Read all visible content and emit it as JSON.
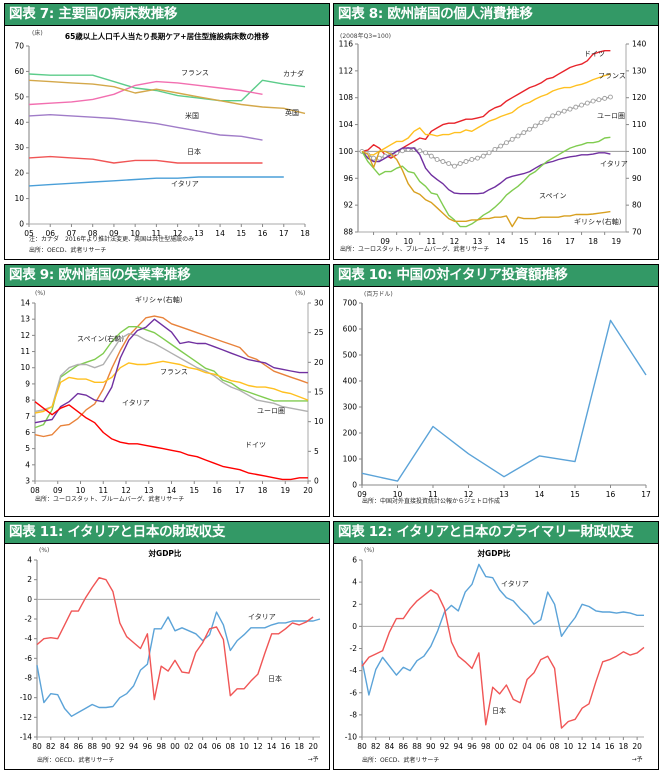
{
  "panels": [
    {
      "title": "図表 7: 主要国の病床数推移"
    },
    {
      "title": "図表 8: 欧州諸国の個人消費推移"
    },
    {
      "title": "図表 9: 欧州諸国の失業率推移"
    },
    {
      "title": "図表 10: 中国の対イタリア投資額推移"
    },
    {
      "title": "図表 11: イタリアと日本の財政収支"
    },
    {
      "title": "図表 12: イタリアと日本のプライマリー財政収支"
    }
  ],
  "chart_data": [
    {
      "type": "line",
      "title": "65歳以上人口千人当たり長期ケア+居住型施設病床数の推移",
      "unit": "(床)",
      "x": [
        "05",
        "06",
        "07",
        "08",
        "09",
        "10",
        "11",
        "12",
        "13",
        "14",
        "15",
        "16",
        "17",
        "18"
      ],
      "ylim": [
        0,
        70
      ],
      "yticks": [
        0,
        10,
        20,
        30,
        40,
        50,
        60,
        70
      ],
      "series": [
        {
          "name": "カナダ",
          "color": "#5ccc8a",
          "values": [
            59,
            58.5,
            58.5,
            58.5,
            56,
            53.5,
            52.5,
            50.5,
            49.5,
            48.5,
            48.5,
            56.5,
            55,
            54
          ]
        },
        {
          "name": "フランス",
          "color": "#f26fb0",
          "values": [
            47,
            47.5,
            48,
            49,
            51,
            54.5,
            56,
            55.5,
            54.5,
            53.5,
            52.5,
            51,
            null,
            null
          ]
        },
        {
          "name": "英国",
          "color": "#d4a84a",
          "values": [
            56.5,
            56,
            55.5,
            55,
            54,
            51.5,
            53,
            51.5,
            50,
            48.5,
            47,
            46,
            45.5,
            43.5
          ]
        },
        {
          "name": "米国",
          "color": "#a07cc8",
          "values": [
            42.5,
            43,
            42.5,
            42,
            41.5,
            40.5,
            39.5,
            38,
            36.5,
            35,
            34.5,
            33,
            null,
            null
          ]
        },
        {
          "name": "日本",
          "color": "#f05555",
          "values": [
            26,
            26.5,
            26,
            25.5,
            24,
            25,
            25,
            24,
            24,
            24,
            24,
            24,
            null,
            null
          ]
        },
        {
          "name": "イタリア",
          "color": "#4a9fd8",
          "values": [
            15,
            15.5,
            16,
            16.5,
            17,
            17.5,
            18,
            18,
            18.5,
            18.5,
            18.5,
            18.5,
            18.5,
            null
          ]
        }
      ],
      "notes": [
        "注：カナダ　2016年より推計法変更、英国は共住型施設のみ",
        "出所：OECD、武者リサーチ"
      ]
    },
    {
      "type": "line",
      "title": "",
      "unit": "(2008年Q3=100)",
      "x": [
        "09",
        "10",
        "11",
        "12",
        "13",
        "14",
        "15",
        "16",
        "17",
        "18",
        "19"
      ],
      "ylim": [
        88,
        116
      ],
      "yticks": [
        88,
        92,
        96,
        100,
        104,
        108,
        112,
        116
      ],
      "y2lim": [
        70,
        140
      ],
      "y2ticks": [
        70,
        80,
        90,
        100,
        110,
        120,
        130,
        140
      ],
      "start_quarter": "2008Q3",
      "series": [
        {
          "name": "ドイツ",
          "color": "#e8232a",
          "axis": "left",
          "values": [
            100,
            100.2,
            101,
            100.5,
            99.5,
            99,
            99.5,
            100.5,
            101,
            101.5,
            102,
            101.8,
            103,
            103.5,
            104,
            104.2,
            104.2,
            104.5,
            104.8,
            104.8,
            105,
            105.2,
            106,
            106.5,
            106.8,
            107.5,
            108,
            108.5,
            109,
            109.5,
            109.8,
            110.2,
            110.8,
            111,
            111.5,
            112,
            112.5,
            112.8,
            113,
            113.5,
            114.5,
            114.8,
            115,
            115
          ]
        },
        {
          "name": "フランス",
          "color": "#ffc020",
          "axis": "left",
          "values": [
            100,
            99.5,
            99.5,
            100,
            100.5,
            101,
            101.5,
            101.5,
            102,
            103,
            103.5,
            102.5,
            102.5,
            102.3,
            102.5,
            102.5,
            102.8,
            102.8,
            103.2,
            103,
            103.5,
            104,
            104.5,
            104.8,
            105.2,
            105.5,
            105.8,
            106.5,
            107,
            107.3,
            107.8,
            108.2,
            108.5,
            109,
            109.3,
            109.5,
            109.5,
            109.8,
            110,
            110.3,
            110.7,
            111,
            111.3,
            111.5
          ]
        },
        {
          "name": "ユーロ圏",
          "color": "#a0a0a0",
          "axis": "left",
          "marker": "circle",
          "values": [
            100,
            99.5,
            99,
            99,
            99.3,
            99.5,
            99.8,
            100.1,
            100.3,
            100.3,
            100.1,
            99.8,
            99.3,
            98.8,
            98.5,
            98.2,
            97.8,
            98.2,
            98.5,
            98.8,
            99,
            99.3,
            99.8,
            100.3,
            100.8,
            101.3,
            101.8,
            102.3,
            102.8,
            103.3,
            103.8,
            104.3,
            104.8,
            105.3,
            105.7,
            106,
            106.3,
            106.6,
            106.9,
            107.2,
            107.5,
            107.7,
            107.9,
            108.1
          ]
        },
        {
          "name": "イタリア",
          "color": "#7030a0",
          "axis": "left",
          "values": [
            100,
            99,
            98.5,
            98.5,
            99,
            99.5,
            100,
            100.5,
            100.5,
            100.5,
            99.5,
            97.5,
            96.5,
            95.8,
            95.2,
            94.3,
            93.8,
            93.7,
            93.7,
            93.7,
            93.7,
            93.8,
            94.3,
            94.7,
            95.3,
            96,
            96.3,
            96.5,
            96.7,
            97,
            97.5,
            98,
            98.3,
            98.5,
            98.8,
            99,
            99.2,
            99.3,
            99.5,
            99.5,
            99.6,
            99.8,
            99.8,
            99.6
          ]
        },
        {
          "name": "スペイン",
          "color": "#80cc50",
          "axis": "left",
          "values": [
            100,
            98.5,
            97.5,
            96.5,
            97,
            97,
            97.5,
            97.8,
            97,
            96.8,
            95.5,
            94.8,
            93.8,
            93.6,
            92,
            90.5,
            89.8,
            88.8,
            88.8,
            89.2,
            89.8,
            90.5,
            91,
            91.7,
            92.5,
            93.5,
            94.2,
            94.8,
            95.6,
            96.5,
            97,
            97.8,
            98.5,
            99,
            99.5,
            100,
            100.5,
            100.8,
            101,
            101.3,
            101.3,
            101.5,
            102,
            102.1
          ]
        },
        {
          "name": "ギリシャ(右軸)",
          "color": "#d8a020",
          "axis": "right",
          "values": [
            100,
            99,
            94,
            100,
            100,
            99,
            97,
            93,
            88,
            85,
            84,
            82,
            81,
            79,
            77,
            75,
            74,
            74,
            74,
            74.5,
            74.5,
            75,
            75,
            75.5,
            75.5,
            76,
            72,
            75.5,
            75,
            75,
            75,
            75.5,
            75.5,
            75.5,
            75.5,
            76,
            76,
            76.5,
            76.5,
            76.5,
            76.7,
            77,
            77.3,
            77.6
          ]
        }
      ],
      "notes": [
        "出所：ユーロスタット、ブルームバーグ、武者リサーチ"
      ]
    },
    {
      "type": "line",
      "title": "",
      "unit": "(%)",
      "unit_right": "(%)",
      "x": [
        "08",
        "09",
        "10",
        "11",
        "12",
        "13",
        "14",
        "15",
        "16",
        "17",
        "18",
        "19",
        "20"
      ],
      "ylim": [
        3,
        14
      ],
      "yticks": [
        3,
        4,
        5,
        6,
        7,
        8,
        9,
        10,
        11,
        12,
        13,
        14
      ],
      "y2lim": [
        0,
        30
      ],
      "y2ticks": [
        0,
        5,
        10,
        15,
        20,
        25,
        30
      ],
      "series": [
        {
          "name": "ギリシャ(右軸)",
          "color": "#e8823a",
          "axis": "right",
          "values": [
            7.8,
            7.5,
            7.8,
            9.3,
            9.5,
            10.5,
            12,
            13,
            15.5,
            19,
            22,
            24.5,
            26,
            27.5,
            27.8,
            27.5,
            26.5,
            26,
            25.5,
            25,
            24.5,
            24,
            23.5,
            23,
            22.5,
            21,
            20.5,
            19.5,
            18.5,
            18,
            17.5,
            17,
            16.5
          ]
        },
        {
          "name": "スペイン(右軸)",
          "color": "#80cc50",
          "axis": "right",
          "values": [
            9,
            9.5,
            12,
            17.5,
            18.5,
            19.5,
            20,
            20.5,
            21.5,
            23.5,
            25,
            26,
            26,
            25.5,
            25,
            24,
            23,
            22,
            21,
            20,
            19,
            18.5,
            17,
            16.5,
            15.5,
            15,
            14.5,
            14,
            13.5,
            13.5,
            13.5,
            13.5,
            13.5
          ]
        },
        {
          "name": "ユーロ圏",
          "color": "#b0b0b0",
          "axis": "left",
          "values": [
            7.3,
            7.4,
            7.6,
            9.5,
            10,
            10.2,
            10.2,
            10,
            10.2,
            11,
            11.8,
            12.1,
            12,
            11.7,
            11.5,
            11.2,
            10.9,
            10.6,
            10.3,
            10,
            9.8,
            9.5,
            9.1,
            8.8,
            8.6,
            8.3,
            8,
            7.9,
            7.8,
            7.6,
            7.5,
            7.4,
            7.3
          ]
        },
        {
          "name": "フランス",
          "color": "#ffc020",
          "axis": "left",
          "values": [
            7.2,
            7.3,
            7.6,
            9.1,
            9.4,
            9.3,
            9.3,
            9.1,
            9.1,
            9.4,
            10,
            10.3,
            10.2,
            10.2,
            10.3,
            10.4,
            10.3,
            10.2,
            10,
            9.9,
            9.7,
            9.6,
            9.4,
            9.2,
            9.1,
            8.9,
            8.8,
            8.8,
            8.7,
            8.5,
            8.4,
            8.2,
            8
          ]
        },
        {
          "name": "イタリア",
          "color": "#7030a0",
          "axis": "left",
          "values": [
            6.6,
            6.7,
            6.8,
            7.6,
            7.9,
            8.4,
            8.3,
            8,
            7.9,
            8.8,
            10.6,
            11.7,
            12.3,
            12.5,
            13,
            12.6,
            12.2,
            11.5,
            11.6,
            11.5,
            11.5,
            11.3,
            11.1,
            10.9,
            10.7,
            10.5,
            10.4,
            10.3,
            10,
            9.9,
            9.8,
            9.7,
            9.7
          ]
        },
        {
          "name": "ドイツ",
          "color": "#ff0000",
          "axis": "left",
          "values": [
            7.9,
            7.5,
            7.1,
            7.5,
            7.7,
            7.3,
            6.9,
            6.6,
            6,
            5.6,
            5.4,
            5.3,
            5.3,
            5.2,
            5.1,
            5.0,
            4.9,
            4.8,
            4.6,
            4.5,
            4.3,
            4.1,
            3.9,
            3.8,
            3.7,
            3.5,
            3.4,
            3.3,
            3.2,
            3.1,
            3.1,
            3.2,
            3.2
          ]
        }
      ],
      "notes": [
        "出所：ユーロスタット、ブルームバーグ、武者リサーチ"
      ]
    },
    {
      "type": "line",
      "title": "",
      "unit": "(百万ドル)",
      "x": [
        "09",
        "10",
        "11",
        "12",
        "13",
        "14",
        "15",
        "16",
        "17"
      ],
      "ylim": [
        0,
        700
      ],
      "yticks": [
        0,
        100,
        200,
        300,
        400,
        500,
        600,
        700
      ],
      "series": [
        {
          "name": "中国の対イタリア投資額",
          "color": "#5ba3d8",
          "values": [
            45,
            15,
            225,
            120,
            32,
            112,
            90,
            633,
            423
          ]
        }
      ],
      "notes": [
        "出所：中国対外直接投資統計公報からジェトロ作成"
      ]
    },
    {
      "type": "line",
      "title": "対GDP比",
      "unit": "(%)",
      "x_start": 1980,
      "x_end": 2021,
      "xticks": [
        "80",
        "82",
        "84",
        "86",
        "88",
        "90",
        "92",
        "94",
        "96",
        "98",
        "00",
        "02",
        "04",
        "06",
        "08",
        "10",
        "12",
        "14",
        "16",
        "18",
        "20"
      ],
      "forecast_label": "→予",
      "ylim": [
        -14,
        4
      ],
      "yticks": [
        -14,
        -12,
        -10,
        -8,
        -6,
        -4,
        -2,
        0,
        2,
        4
      ],
      "series": [
        {
          "name": "イタリア",
          "color": "#5ba3d8",
          "values": [
            -6.7,
            -10.5,
            -9.6,
            -9.7,
            -11.1,
            -11.9,
            -11.5,
            -11.1,
            -10.7,
            -11.0,
            -11.0,
            -10.9,
            -10.0,
            -9.6,
            -8.8,
            -7.2,
            -6.6,
            -3.0,
            -3.0,
            -1.8,
            -3.2,
            -2.9,
            -3.2,
            -3.5,
            -4.2,
            -3.6,
            -1.3,
            -2.6,
            -5.2,
            -4.2,
            -3.6,
            -2.9,
            -2.9,
            -2.9,
            -2.6,
            -2.4,
            -2.4,
            -2.2,
            -2.2,
            -2.2,
            -2.2,
            -2.0
          ]
        },
        {
          "name": "日本",
          "color": "#f05555",
          "values": [
            -4.6,
            -4.0,
            -3.9,
            -4.0,
            -2.6,
            -1.2,
            -1.2,
            0.1,
            1.2,
            2.2,
            2.0,
            0.8,
            -2.4,
            -3.8,
            -4.4,
            -5.0,
            -3.5,
            -10.2,
            -6.8,
            -7.3,
            -6.2,
            -7.4,
            -7.5,
            -5.4,
            -4.4,
            -3.0,
            -2.8,
            -4.1,
            -9.8,
            -9.1,
            -9.1,
            -8.3,
            -7.6,
            -5.5,
            -3.5,
            -3.5,
            -3.0,
            -2.4,
            -2.6,
            -2.3,
            -1.8,
            null
          ]
        }
      ],
      "notes": [
        "出所：OECD、武者リサーチ"
      ]
    },
    {
      "type": "line",
      "title": "対GDP比",
      "unit": "(%)",
      "x_start": 1980,
      "x_end": 2021,
      "xticks": [
        "80",
        "82",
        "84",
        "86",
        "88",
        "90",
        "92",
        "94",
        "96",
        "98",
        "00",
        "02",
        "04",
        "06",
        "08",
        "10",
        "12",
        "14",
        "16",
        "18",
        "20"
      ],
      "forecast_label": "→予",
      "ylim": [
        -10,
        6
      ],
      "yticks": [
        -10,
        -8,
        -6,
        -4,
        -2,
        0,
        2,
        4,
        6
      ],
      "series": [
        {
          "name": "イタリア",
          "color": "#5ba3d8",
          "values": [
            -3.1,
            -6.2,
            -3.9,
            -2.8,
            -3.6,
            -4.4,
            -3.7,
            -4.0,
            -3.1,
            -2.7,
            -1.8,
            -0.4,
            1.3,
            1.9,
            1.4,
            3.1,
            3.8,
            5.6,
            4.5,
            4.4,
            3.3,
            2.6,
            2.3,
            1.6,
            1.0,
            0.2,
            0.6,
            3.1,
            2.0,
            -0.9,
            0.0,
            0.8,
            2.0,
            1.8,
            1.4,
            1.3,
            1.3,
            1.2,
            1.3,
            1.2,
            1.0,
            1.0
          ]
        },
        {
          "name": "日本",
          "color": "#f05555",
          "values": [
            -3.6,
            -2.8,
            -2.5,
            -2.2,
            -0.5,
            0.7,
            0.7,
            1.6,
            2.3,
            2.8,
            3.3,
            2.9,
            1.6,
            -1.4,
            -2.7,
            -3.2,
            -3.8,
            -2.4,
            -8.9,
            -5.5,
            -6.1,
            -5.3,
            -6.6,
            -6.9,
            -4.8,
            -4.2,
            -3.0,
            -2.7,
            -3.8,
            -9.2,
            -8.6,
            -8.4,
            -7.4,
            -7.0,
            -5.0,
            -3.2,
            -3.0,
            -2.7,
            -2.3,
            -2.6,
            -2.4,
            -1.9
          ]
        }
      ],
      "notes": [
        "出所：OECD、武者リサーチ"
      ]
    }
  ]
}
